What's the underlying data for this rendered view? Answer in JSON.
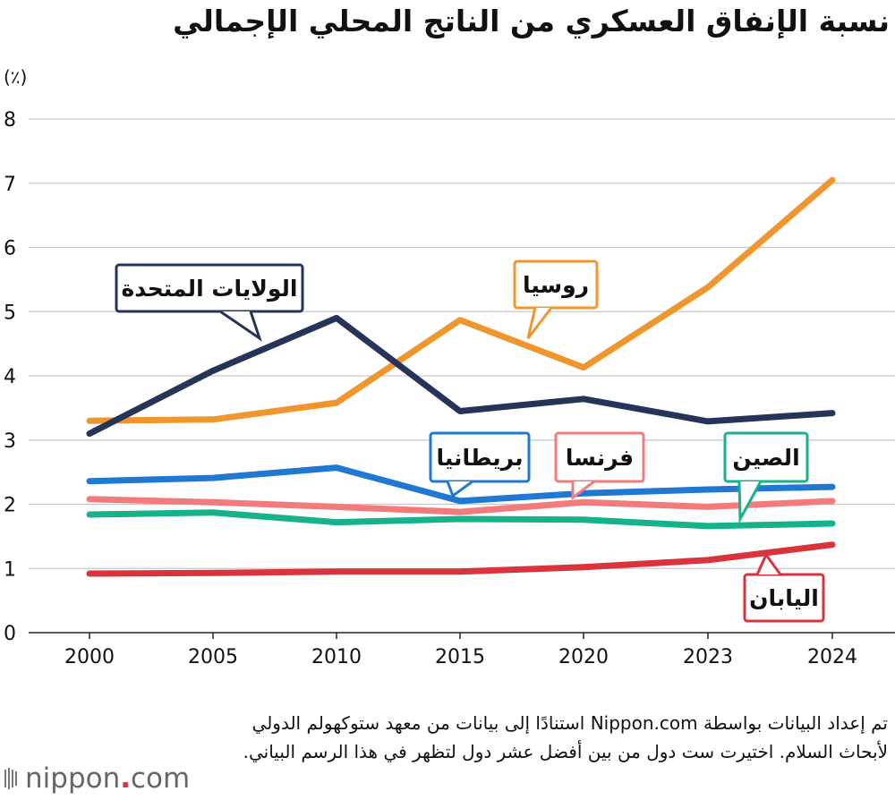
{
  "title": "نسبة الإنفاق العسكري من الناتج المحلي الإجمالي",
  "unit_label": "(٪)",
  "footnote": "تم إعداد البيانات بواسطة Nippon.com استنادًا إلى بيانات من معهد ستوكهولم الدولي لأبحاث السلام. اختيرت ست دول من بين أفضل عشر دول لتظهر في هذا الرسم البياني.",
  "logo": {
    "name": "nippon",
    "dot": ".",
    "suffix": "com"
  },
  "chart_data": {
    "type": "line",
    "title": "نسبة الإنفاق العسكري من الناتج المحلي الإجمالي",
    "ylabel": "(٪)",
    "x": [
      "2000",
      "2005",
      "2010",
      "2015",
      "2020",
      "2023",
      "2024"
    ],
    "ylim": [
      0,
      8
    ],
    "yticks": [
      "0",
      "1",
      "2",
      "3",
      "4",
      "5",
      "6",
      "7",
      "8"
    ],
    "grid": true,
    "series": [
      {
        "name": "روسيا",
        "color": "#f0962c",
        "values": [
          3.3,
          3.32,
          3.58,
          4.87,
          4.13,
          5.38,
          7.05
        ]
      },
      {
        "name": "الولايات المتحدة",
        "color": "#26345a",
        "values": [
          3.1,
          4.08,
          4.9,
          3.45,
          3.64,
          3.29,
          3.42
        ]
      },
      {
        "name": "بريطانيا",
        "color": "#1f78d2",
        "values": [
          2.36,
          2.41,
          2.57,
          2.05,
          2.17,
          2.23,
          2.27
        ]
      },
      {
        "name": "فرنسا",
        "color": "#f47b7b",
        "values": [
          2.08,
          2.03,
          1.96,
          1.88,
          2.03,
          1.96,
          2.05
        ]
      },
      {
        "name": "الصين",
        "color": "#16b28c",
        "values": [
          1.84,
          1.87,
          1.72,
          1.77,
          1.76,
          1.66,
          1.7
        ]
      },
      {
        "name": "اليابان",
        "color": "#d9333c",
        "values": [
          0.92,
          0.93,
          0.95,
          0.95,
          1.02,
          1.13,
          1.37
        ]
      }
    ]
  }
}
